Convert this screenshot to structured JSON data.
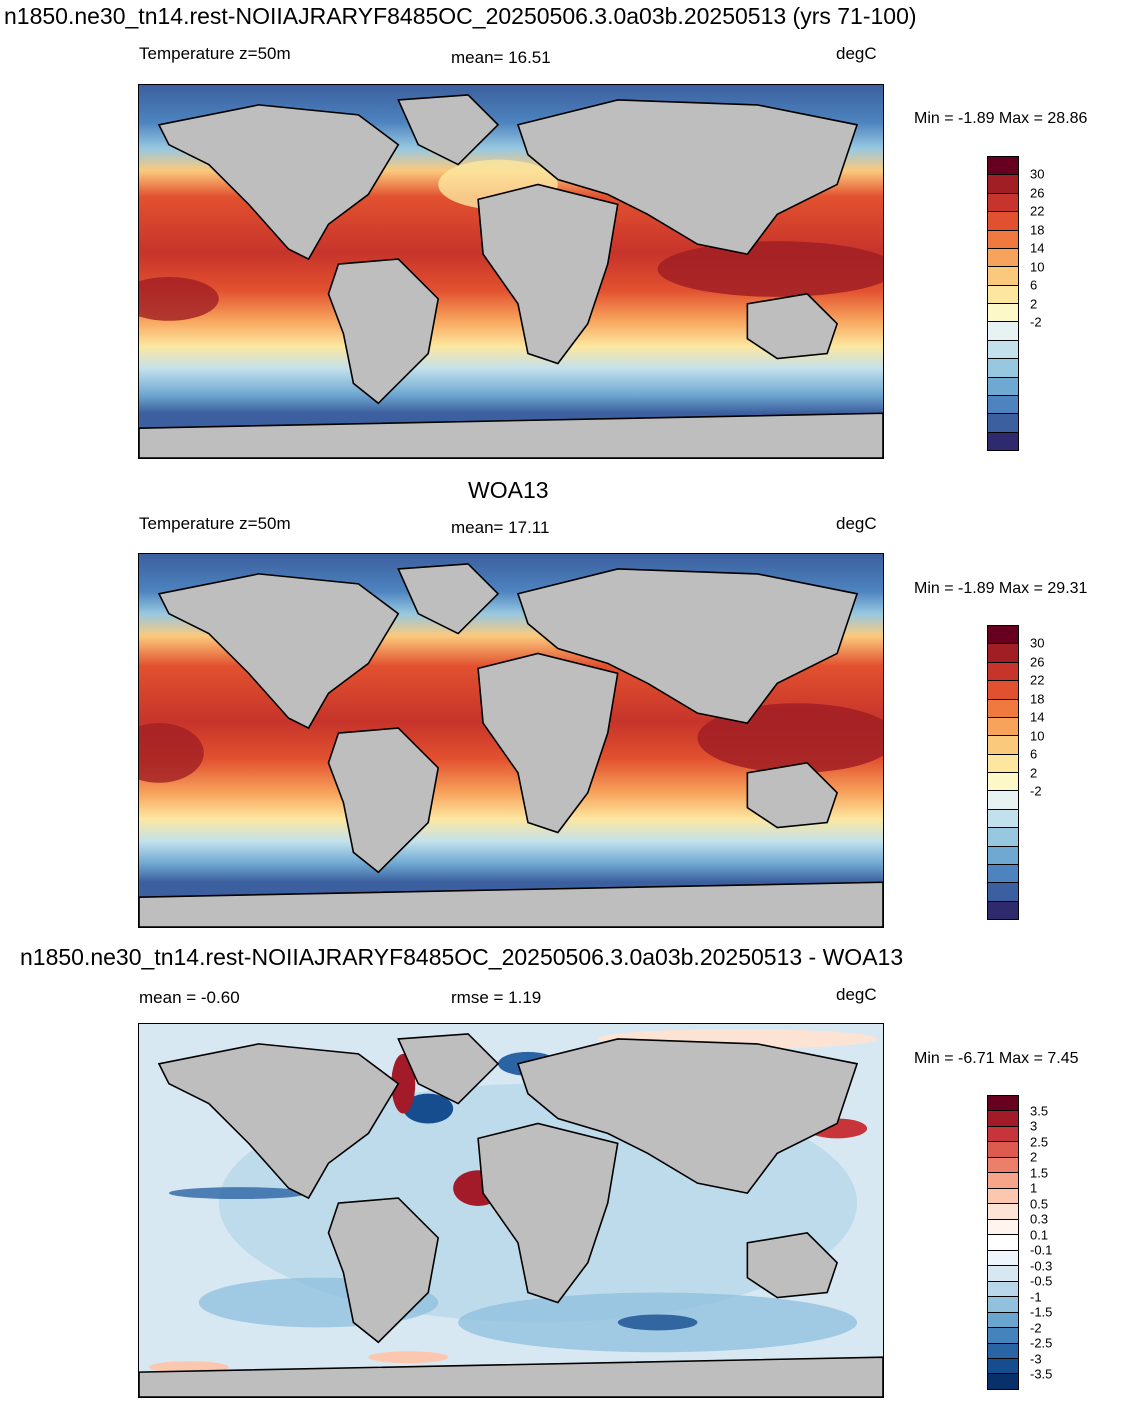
{
  "panel1": {
    "title": "n1850.ne30_tn14.rest-NOIIAJRARYF8485OC_20250506.3.0a03b.20250513 (yrs 71-100)",
    "left": "Temperature z=50m",
    "center": "mean=  16.51",
    "right": "degC",
    "minmax": "Min =  -1.89 Max =  28.86"
  },
  "panel2": {
    "title": "WOA13",
    "left": "Temperature z=50m",
    "center": "mean=  17.11",
    "right": "degC",
    "minmax": "Min =  -1.89 Max =  29.31"
  },
  "panel3": {
    "title": "n1850.ne30_tn14.rest-NOIIAJRARYF8485OC_20250506.3.0a03b.20250513 - WOA13",
    "left": "mean =  -0.60",
    "center": "rmse =   1.19",
    "right": "degC",
    "minmax": "Min =  -6.71 Max =   7.45"
  },
  "temp_colorbar": {
    "labels": [
      "30",
      "26",
      "22",
      "18",
      "14",
      "10",
      "6",
      "2",
      "-2"
    ],
    "colors": [
      "#67001f",
      "#a11e24",
      "#c7342b",
      "#e2512f",
      "#f0793f",
      "#f7a35c",
      "#fbc97c",
      "#fde7a0",
      "#fcf8c7",
      "#e6f3f2",
      "#c3e1ec",
      "#98c8e0",
      "#6fa8d1",
      "#4d84bf",
      "#3c5f9f",
      "#2f2a6e"
    ]
  },
  "diff_colorbar": {
    "labels": [
      "3.5",
      "3",
      "2.5",
      "2",
      "1.5",
      "1",
      "0.5",
      "0.3",
      "0.1",
      "-0.1",
      "-0.3",
      "-0.5",
      "-1",
      "-1.5",
      "-2",
      "-2.5",
      "-3",
      "-3.5"
    ],
    "colors": [
      "#67001f",
      "#a31a28",
      "#c7353b",
      "#dc5a4f",
      "#ec7f6a",
      "#f6a58a",
      "#fbc7ae",
      "#fde3d3",
      "#fff4ee",
      "#ffffff",
      "#eef5fb",
      "#d7e8f3",
      "#b8d7ea",
      "#92c1de",
      "#6aa5cf",
      "#4583bd",
      "#2a64a5",
      "#164d8e",
      "#08306b"
    ]
  }
}
